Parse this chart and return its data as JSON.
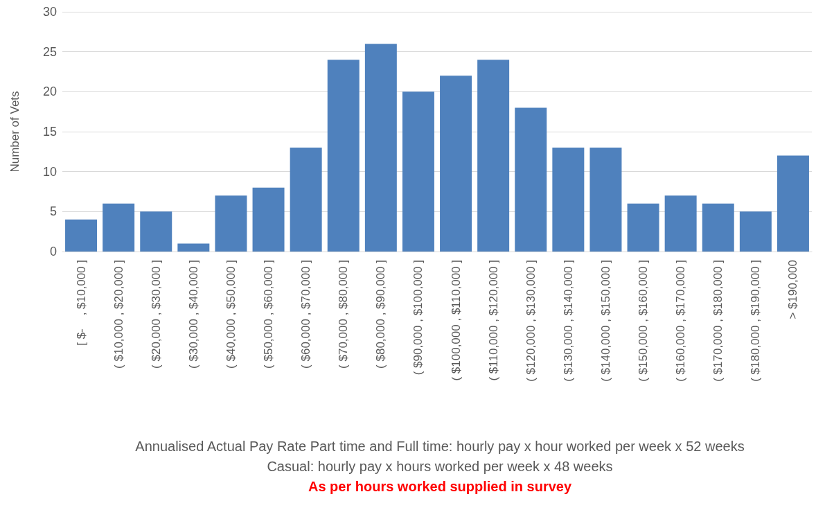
{
  "chart_data": {
    "type": "bar",
    "categories": [
      "[ $-    , $10,000 ]",
      "( $10,000 , $20,000 ]",
      "( $20,000 , $30,000 ]",
      "( $30,000 , $40,000 ]",
      "( $40,000 , $50,000 ]",
      "( $50,000 , $60,000 ]",
      "( $60,000 , $70,000 ]",
      "( $70,000 , $80,000 ]",
      "( $80,000 , $90,000 ]",
      "( $90,000 , $100,000 ]",
      "( $100,000 , $110,000 ]",
      "( $110,000 , $120,000 ]",
      "( $120,000 , $130,000 ]",
      "( $130,000 , $140,000 ]",
      "( $140,000 , $150,000 ]",
      "( $150,000 , $160,000 ]",
      "( $160,000 , $170,000 ]",
      "( $170,000 , $180,000 ]",
      "( $180,000 , $190,000 ]",
      "> $190,000"
    ],
    "values": [
      4,
      6,
      5,
      1,
      7,
      8,
      13,
      24,
      26,
      20,
      22,
      24,
      18,
      13,
      13,
      6,
      7,
      6,
      5,
      12
    ],
    "color": "#4f81bd",
    "ylabel": "Number of Vets",
    "xlabel": "Annualised Actual  Pay Rate Part time and Full time: hourly pay x hour worked per week x 52 weeks",
    "annotations": [
      "Casual: hourly pay x hours worked per week x 48 weeks",
      "As per hours worked supplied in survey"
    ],
    "ylim": [
      0,
      30
    ],
    "yticks": [
      0,
      5,
      10,
      15,
      20,
      25,
      30
    ],
    "grid": "y"
  }
}
